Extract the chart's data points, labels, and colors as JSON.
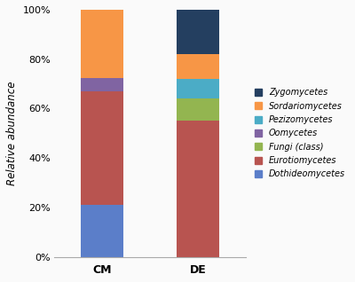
{
  "categories": [
    "CM",
    "DE"
  ],
  "series": [
    {
      "name": "Dothideomycetes",
      "values": [
        21.0,
        0.0
      ],
      "color": "#5B7EC9"
    },
    {
      "name": "Eurotiomycetes",
      "values": [
        46.0,
        55.0
      ],
      "color": "#B85450"
    },
    {
      "name": "Fungi (class)",
      "values": [
        0.0,
        9.0
      ],
      "color": "#93B550"
    },
    {
      "name": "Oomycetes",
      "values": [
        5.5,
        0.0
      ],
      "color": "#8064A2"
    },
    {
      "name": "Pezizomycetes",
      "values": [
        0.0,
        8.0
      ],
      "color": "#4BACC6"
    },
    {
      "name": "Sordariomycetes",
      "values": [
        27.5,
        10.0
      ],
      "color": "#F79646"
    },
    {
      "name": "Zygomycetes",
      "values": [
        0.0,
        18.0
      ],
      "color": "#243F60"
    }
  ],
  "ylabel": "Relative abundance",
  "yticks": [
    0,
    20,
    40,
    60,
    80,
    100
  ],
  "yticklabels": [
    "0%",
    "20%",
    "40%",
    "60%",
    "80%",
    "100%"
  ],
  "ylim": [
    0,
    100
  ],
  "background_color": "#FAFAFA",
  "bar_width": 0.45,
  "legend_order": [
    6,
    5,
    4,
    3,
    2,
    1,
    0
  ],
  "legend_fontsize": 7.0,
  "ylabel_fontsize": 8.5,
  "xtick_fontsize": 9,
  "ytick_fontsize": 8
}
